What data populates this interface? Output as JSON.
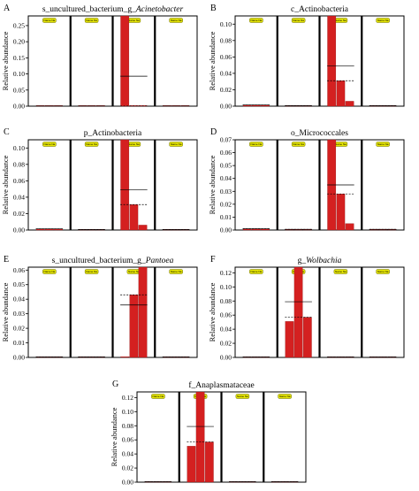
{
  "figure": {
    "background": "#ffffff",
    "bar_color": "#d42020",
    "tag_fill": "#e6e600",
    "tag_stroke": "#6b6b00",
    "tag_text": "Name Na"
  },
  "chart_data": [
    {
      "panel": "A",
      "type": "bar",
      "title": "s_uncultured_bacterium_g_",
      "title_italic": "Acinetobacter",
      "ylabel": "Relative abundance",
      "ylim": [
        0,
        0.28
      ],
      "yticks": [
        0.0,
        0.05,
        0.1,
        0.15,
        0.2,
        0.25
      ],
      "ytick_labels": [
        "0.00",
        "0.05",
        "0.10",
        "0.15",
        "0.20",
        "0.25"
      ],
      "groups": [
        {
          "values": [
            0.0005,
            0.0005,
            0.0005
          ],
          "mean": 0.0005,
          "median": 0.0005
        },
        {
          "values": [
            0.0005,
            0.0005,
            0.0005
          ],
          "mean": 0.0005,
          "median": 0.0005
        },
        {
          "values": [
            0.28,
            0.0005,
            0.0005
          ],
          "mean": 0.093,
          "median": 0.0005
        },
        {
          "values": [
            0.0005,
            0.0005,
            0.0005
          ],
          "mean": 0.0005,
          "median": 0.0005
        }
      ]
    },
    {
      "panel": "B",
      "type": "bar",
      "title": "c_Actinobacteria",
      "title_italic": "",
      "ylabel": "Relative abundance",
      "ylim": [
        0,
        0.11
      ],
      "yticks": [
        0.0,
        0.02,
        0.04,
        0.06,
        0.08,
        0.1
      ],
      "ytick_labels": [
        "0.00",
        "0.02",
        "0.04",
        "0.06",
        "0.08",
        "0.10"
      ],
      "groups": [
        {
          "values": [
            0.0015,
            0.0015,
            0.0012
          ],
          "mean": 0.0014,
          "median": 0.0014
        },
        {
          "values": [
            0.0005,
            0.0005,
            0.0005
          ],
          "mean": 0.0005,
          "median": 0.0005
        },
        {
          "values": [
            0.11,
            0.031,
            0.006
          ],
          "mean": 0.049,
          "median": 0.031
        },
        {
          "values": [
            0.0005,
            0.0005,
            0.0005
          ],
          "mean": 0.0005,
          "median": 0.0005
        }
      ]
    },
    {
      "panel": "C",
      "type": "bar",
      "title": "p_Actinobacteria",
      "title_italic": "",
      "ylabel": "Relative abundance",
      "ylim": [
        0,
        0.11
      ],
      "yticks": [
        0.0,
        0.02,
        0.04,
        0.06,
        0.08,
        0.1
      ],
      "ytick_labels": [
        "0.00",
        "0.02",
        "0.04",
        "0.06",
        "0.08",
        "0.10"
      ],
      "groups": [
        {
          "values": [
            0.0015,
            0.0015,
            0.0012
          ],
          "mean": 0.0014,
          "median": 0.0014
        },
        {
          "values": [
            0.0005,
            0.0005,
            0.0005
          ],
          "mean": 0.0005,
          "median": 0.0005
        },
        {
          "values": [
            0.11,
            0.031,
            0.006
          ],
          "mean": 0.049,
          "median": 0.031
        },
        {
          "values": [
            0.0005,
            0.0005,
            0.0005
          ],
          "mean": 0.0005,
          "median": 0.0005
        }
      ]
    },
    {
      "panel": "D",
      "type": "bar",
      "title": "o_Micrococcales",
      "title_italic": "",
      "ylabel": "Relative abundance",
      "ylim": [
        0,
        0.07
      ],
      "yticks": [
        0.0,
        0.01,
        0.02,
        0.03,
        0.04,
        0.05,
        0.06,
        0.07
      ],
      "ytick_labels": [
        "0.00",
        "0.01",
        "0.02",
        "0.03",
        "0.04",
        "0.05",
        "0.06",
        "0.07"
      ],
      "groups": [
        {
          "values": [
            0.001,
            0.001,
            0.0008
          ],
          "mean": 0.001,
          "median": 0.001
        },
        {
          "values": [
            0.0005,
            0.0005,
            0.0005
          ],
          "mean": 0.0005,
          "median": 0.0005
        },
        {
          "values": [
            0.07,
            0.028,
            0.005
          ],
          "mean": 0.035,
          "median": 0.028
        },
        {
          "values": [
            0.0005,
            0.0005,
            0.0005
          ],
          "mean": 0.0005,
          "median": 0.0005
        }
      ]
    },
    {
      "panel": "E",
      "type": "bar",
      "title": "s_uncultured_bacterium_g_",
      "title_italic": "Pantoea",
      "ylabel": "Relative abundance",
      "ylim": [
        0,
        0.062
      ],
      "yticks": [
        0.0,
        0.01,
        0.02,
        0.03,
        0.04,
        0.05,
        0.06
      ],
      "ytick_labels": [
        "0.00",
        "0.01",
        "0.02",
        "0.03",
        "0.04",
        "0.05",
        "0.06"
      ],
      "groups": [
        {
          "values": [
            0.0003,
            0.0003,
            0.0003
          ],
          "mean": 0.0003,
          "median": 0.0003
        },
        {
          "values": [
            0.0003,
            0.0003,
            0.0003
          ],
          "mean": 0.0003,
          "median": 0.0003
        },
        {
          "values": [
            0.0005,
            0.043,
            0.062
          ],
          "mean": 0.036,
          "median": 0.043
        },
        {
          "values": [
            0.0003,
            0.0003,
            0.0003
          ],
          "mean": 0.0003,
          "median": 0.0003
        }
      ]
    },
    {
      "panel": "F",
      "type": "bar",
      "title": "g_",
      "title_italic": "Wolbachia",
      "ylabel": "Relative abundance",
      "ylim": [
        0,
        0.128
      ],
      "yticks": [
        0.0,
        0.02,
        0.04,
        0.06,
        0.08,
        0.1,
        0.12
      ],
      "ytick_labels": [
        "0.00",
        "0.02",
        "0.04",
        "0.06",
        "0.08",
        "0.10",
        "0.12"
      ],
      "groups": [
        {
          "values": [
            0.0005,
            0.0005,
            0.0005
          ],
          "mean": 0.0005,
          "median": 0.0005
        },
        {
          "values": [
            0.051,
            0.128,
            0.057
          ],
          "mean": 0.079,
          "median": 0.057
        },
        {
          "values": [
            0.0005,
            0.0005,
            0.0005
          ],
          "mean": 0.0005,
          "median": 0.0005
        },
        {
          "values": [
            0.0005,
            0.0005,
            0.0005
          ],
          "mean": 0.0005,
          "median": 0.0005
        }
      ]
    },
    {
      "panel": "G",
      "type": "bar",
      "title": "f_Anaplasmataceae",
      "title_italic": "",
      "ylabel": "Relative abundance",
      "ylim": [
        0,
        0.128
      ],
      "yticks": [
        0.0,
        0.02,
        0.04,
        0.06,
        0.08,
        0.1,
        0.12
      ],
      "ytick_labels": [
        "0.00",
        "0.02",
        "0.04",
        "0.06",
        "0.08",
        "0.10",
        "0.12"
      ],
      "groups": [
        {
          "values": [
            0.0005,
            0.0005,
            0.0005
          ],
          "mean": 0.0005,
          "median": 0.0005
        },
        {
          "values": [
            0.051,
            0.128,
            0.057
          ],
          "mean": 0.079,
          "median": 0.057
        },
        {
          "values": [
            0.0005,
            0.0005,
            0.0005
          ],
          "mean": 0.0005,
          "median": 0.0005
        },
        {
          "values": [
            0.0005,
            0.0005,
            0.0005
          ],
          "mean": 0.0005,
          "median": 0.0005
        }
      ]
    }
  ]
}
